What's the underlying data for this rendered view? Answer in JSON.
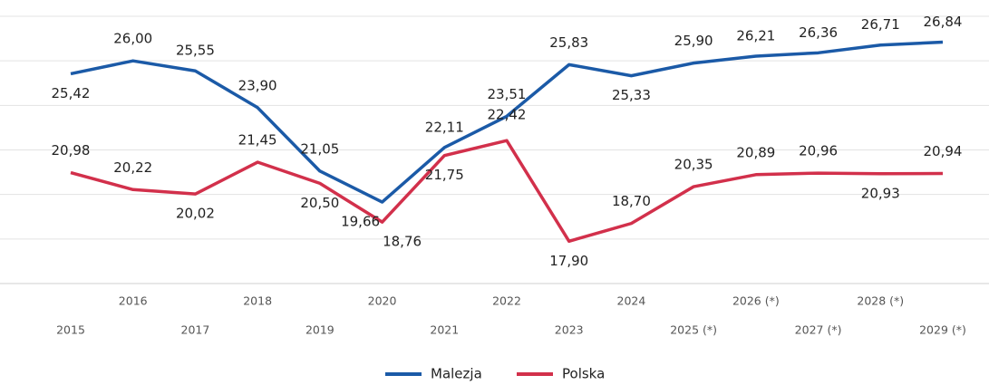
{
  "chart_data": {
    "type": "line",
    "categories": [
      "2015",
      "2016",
      "2017",
      "2018",
      "2019",
      "2020",
      "2021",
      "2022",
      "2023",
      "2024",
      "2025 (*)",
      "2026 (*)",
      "2027 (*)",
      "2028 (*)",
      "2029 (*)"
    ],
    "series": [
      {
        "name": "Malezja",
        "color": "#1b5aa7",
        "values": [
          25.42,
          26.0,
          25.55,
          23.9,
          21.05,
          19.66,
          22.11,
          23.51,
          25.83,
          25.33,
          25.9,
          26.21,
          26.36,
          26.71,
          26.84
        ],
        "value_labels": [
          "25,42",
          "26,00",
          "25,55",
          "23,90",
          "21,05",
          "19,66",
          "22,11",
          "23,51",
          "25,83",
          "25,33",
          "25,90",
          "26,21",
          "26,36",
          "26,71",
          "26,84"
        ]
      },
      {
        "name": "Polska",
        "color": "#d2304b",
        "values": [
          20.98,
          20.22,
          20.02,
          21.45,
          20.5,
          18.76,
          21.75,
          22.42,
          17.9,
          18.7,
          20.35,
          20.89,
          20.96,
          20.93,
          20.94
        ],
        "value_labels": [
          "20,98",
          "20,22",
          "20,02",
          "21,45",
          "20,50",
          "18,76",
          "21,75",
          "22,42",
          "17,90",
          "18,70",
          "20,35",
          "20,89",
          "20,96",
          "20,93",
          "20,94"
        ]
      }
    ],
    "ylim": [
      16,
      28
    ],
    "yticks": [
      16,
      18,
      20,
      22,
      24,
      26,
      28
    ],
    "grid": true,
    "legend": "bottom"
  }
}
